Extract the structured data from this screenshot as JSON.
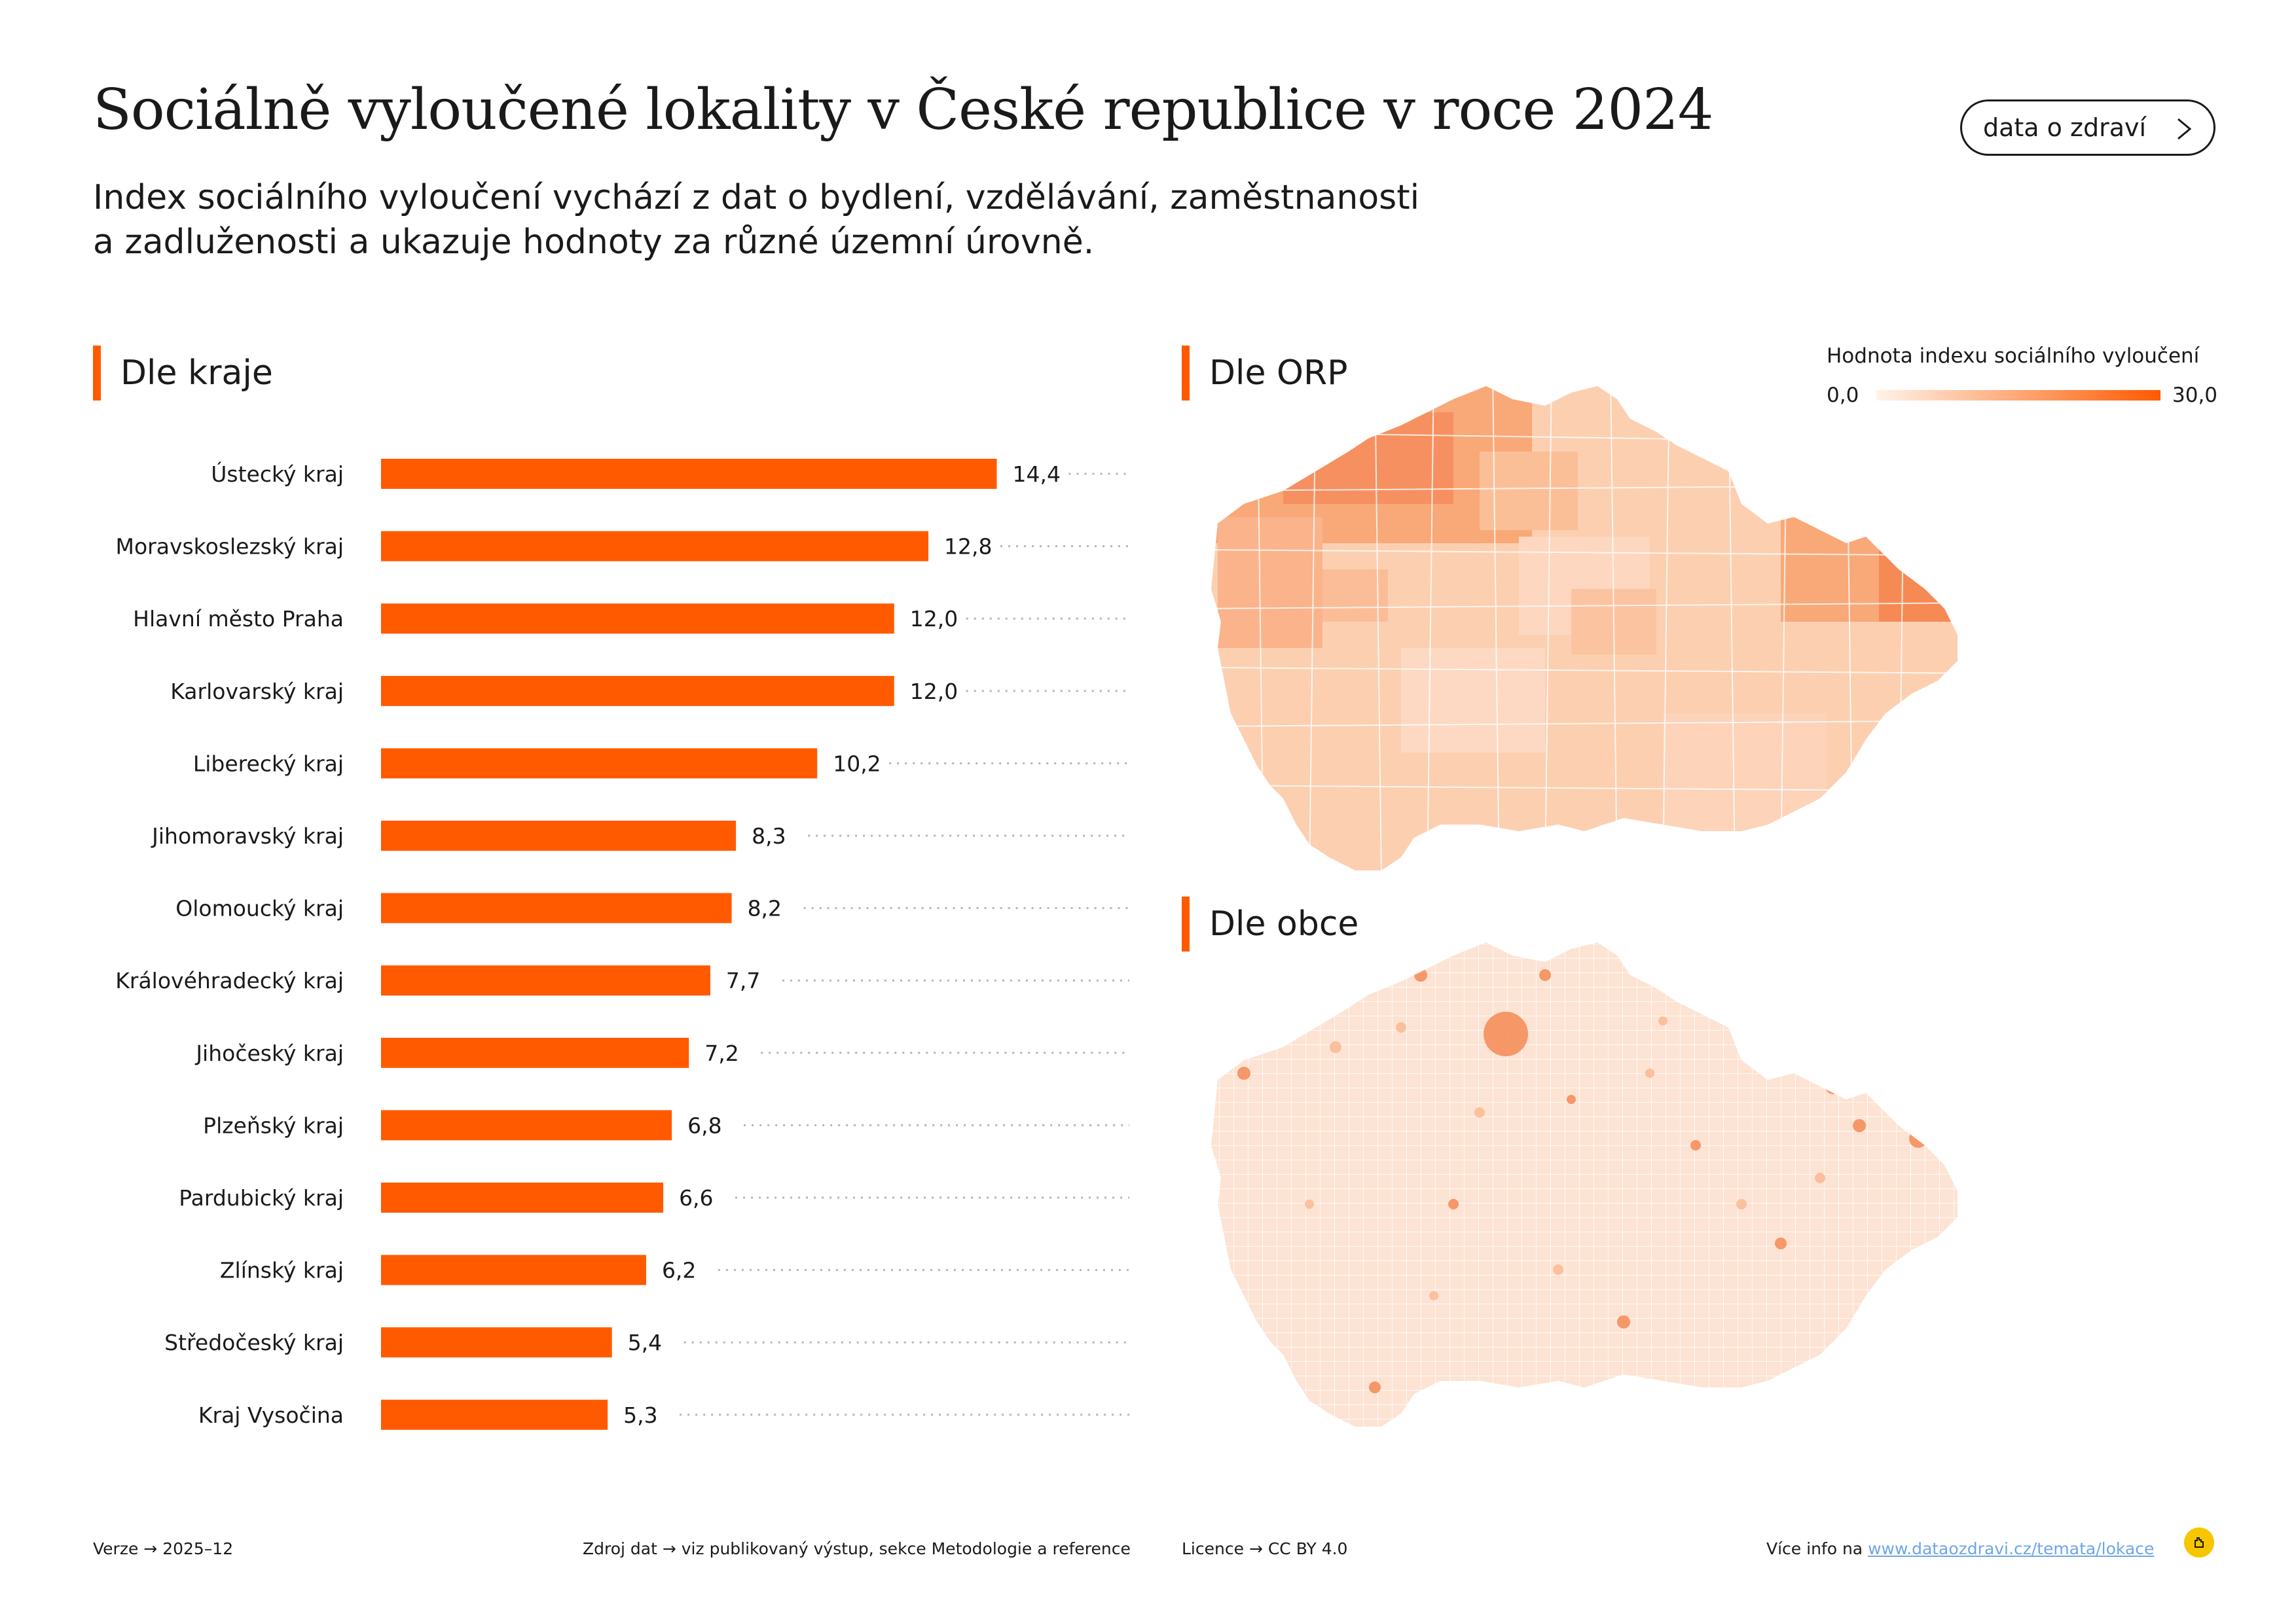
{
  "header": {
    "title": "Sociálně vyloučené lokality v České republice v roce 2024",
    "subtitle_line1": "Index sociálního vyloučení vychází z dat o bydlení, vzdělávání, zaměstnanosti",
    "subtitle_line2": "a zadluženosti a ukazuje hodnoty za různé územní úrovně.",
    "button_label": "data o zdraví"
  },
  "sections": {
    "by_region": "Dle kraje",
    "by_orp": "Dle ORP",
    "by_municipality": "Dle obce"
  },
  "legend": {
    "title": "Hodnota indexu sociálního vyloučení",
    "min": "0,0",
    "max": "30,0",
    "color_low": "#fff3ea",
    "color_high": "#ff5a00"
  },
  "chart_data": {
    "type": "bar",
    "orientation": "horizontal",
    "title": "Dle kraje",
    "categories": [
      "Ústecký kraj",
      "Moravskoslezský kraj",
      "Hlavní město Praha",
      "Karlovarský kraj",
      "Liberecký kraj",
      "Jihomoravský kraj",
      "Olomoucký kraj",
      "Královéhradecký kraj",
      "Jihočeský kraj",
      "Plzeňský kraj",
      "Pardubický kraj",
      "Zlínský kraj",
      "Středočeský kraj",
      "Kraj Vysočina"
    ],
    "values": [
      14.4,
      12.8,
      12.0,
      12.0,
      10.2,
      8.3,
      8.2,
      7.7,
      7.2,
      6.8,
      6.6,
      6.2,
      5.4,
      5.3
    ],
    "value_labels": [
      "14,4",
      "12,8",
      "12,0",
      "12,0",
      "10,2",
      "8,3",
      "8,2",
      "7,7",
      "7,2",
      "6,8",
      "6,6",
      "6,2",
      "5,4",
      "5,3"
    ],
    "xlim": [
      0,
      17.5
    ],
    "bar_color": "#ff5a00"
  },
  "footer": {
    "version_label": "Verze",
    "version_value": "2025–12",
    "source_label": "Zdroj dat",
    "source_value": "viz publikovaný výstup, sekce Metodologie a reference",
    "license_label": "Licence",
    "license_value": "CC BY 4.0",
    "more_label": "Více info na",
    "more_link": "www.dataozdravi.cz/temata/lokace"
  }
}
